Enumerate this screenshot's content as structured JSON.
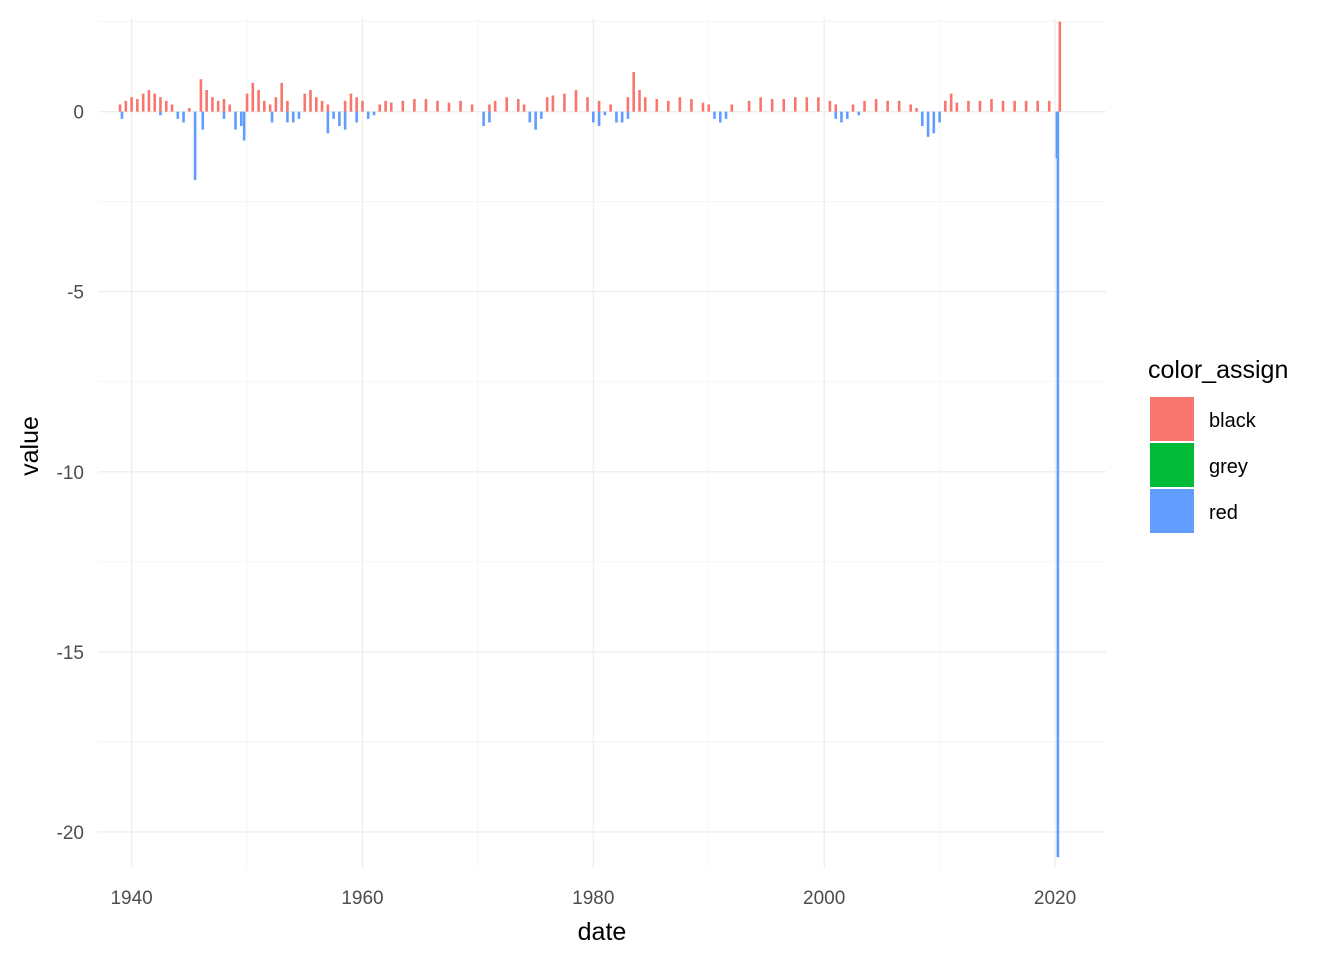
{
  "chart_data": {
    "type": "bar",
    "xlabel": "date",
    "ylabel": "value",
    "xlim": [
      "1937-02-01",
      "2024-06-01"
    ],
    "ylim": [
      -21.0,
      2.6
    ],
    "x_ticks": [
      "1940",
      "1960",
      "1980",
      "2000",
      "2020"
    ],
    "x_tick_dates": [
      "1940-01-01",
      "1960-01-01",
      "1980-01-01",
      "2000-01-01",
      "2020-01-01"
    ],
    "y_ticks": [
      0,
      -5,
      -10,
      -15,
      -20
    ],
    "y_tick_labels": [
      "0",
      "-5",
      "-10",
      "-15",
      "-20"
    ],
    "grid": true,
    "legend": {
      "title": "color_assign",
      "position": "right",
      "entries": [
        {
          "label": "black",
          "color": "#F8766D"
        },
        {
          "label": "grey",
          "color": "#00BA38"
        },
        {
          "label": "red",
          "color": "#619CFF"
        }
      ]
    },
    "series": [
      {
        "name": "black",
        "color": "#F8766D",
        "points": [
          [
            "1939-01-01",
            0.2
          ],
          [
            "1939-07-01",
            0.3
          ],
          [
            "1940-01-01",
            0.4
          ],
          [
            "1940-07-01",
            0.35
          ],
          [
            "1941-01-01",
            0.5
          ],
          [
            "1941-07-01",
            0.6
          ],
          [
            "1942-01-01",
            0.5
          ],
          [
            "1942-07-01",
            0.4
          ],
          [
            "1943-01-01",
            0.3
          ],
          [
            "1943-07-01",
            0.2
          ],
          [
            "1945-01-01",
            0.1
          ],
          [
            "1946-01-01",
            0.9
          ],
          [
            "1946-07-01",
            0.6
          ],
          [
            "1947-01-01",
            0.4
          ],
          [
            "1947-07-01",
            0.3
          ],
          [
            "1948-01-01",
            0.35
          ],
          [
            "1948-07-01",
            0.2
          ],
          [
            "1950-01-01",
            0.5
          ],
          [
            "1950-07-01",
            0.8
          ],
          [
            "1951-01-01",
            0.6
          ],
          [
            "1951-07-01",
            0.3
          ],
          [
            "1952-01-01",
            0.2
          ],
          [
            "1952-07-01",
            0.4
          ],
          [
            "1953-01-01",
            0.8
          ],
          [
            "1953-07-01",
            0.3
          ],
          [
            "1955-01-01",
            0.5
          ],
          [
            "1955-07-01",
            0.6
          ],
          [
            "1956-01-01",
            0.4
          ],
          [
            "1956-07-01",
            0.3
          ],
          [
            "1957-01-01",
            0.2
          ],
          [
            "1958-07-01",
            0.3
          ],
          [
            "1959-01-01",
            0.5
          ],
          [
            "1959-07-01",
            0.4
          ],
          [
            "1960-01-01",
            0.3
          ],
          [
            "1961-07-01",
            0.2
          ],
          [
            "1962-01-01",
            0.3
          ],
          [
            "1962-07-01",
            0.25
          ],
          [
            "1963-07-01",
            0.3
          ],
          [
            "1964-07-01",
            0.35
          ],
          [
            "1965-07-01",
            0.35
          ],
          [
            "1966-07-01",
            0.3
          ],
          [
            "1967-07-01",
            0.25
          ],
          [
            "1968-07-01",
            0.3
          ],
          [
            "1969-07-01",
            0.2
          ],
          [
            "1971-01-01",
            0.2
          ],
          [
            "1971-07-01",
            0.3
          ],
          [
            "1972-07-01",
            0.4
          ],
          [
            "1973-07-01",
            0.35
          ],
          [
            "1974-01-01",
            0.2
          ],
          [
            "1976-01-01",
            0.4
          ],
          [
            "1976-07-01",
            0.45
          ],
          [
            "1977-07-01",
            0.5
          ],
          [
            "1978-07-01",
            0.6
          ],
          [
            "1979-07-01",
            0.4
          ],
          [
            "1980-07-01",
            0.3
          ],
          [
            "1981-07-01",
            0.2
          ],
          [
            "1983-01-01",
            0.4
          ],
          [
            "1983-07-01",
            1.1
          ],
          [
            "1984-01-01",
            0.6
          ],
          [
            "1984-07-01",
            0.4
          ],
          [
            "1985-07-01",
            0.35
          ],
          [
            "1986-07-01",
            0.3
          ],
          [
            "1987-07-01",
            0.4
          ],
          [
            "1988-07-01",
            0.35
          ],
          [
            "1989-07-01",
            0.25
          ],
          [
            "1990-01-01",
            0.2
          ],
          [
            "1992-01-01",
            0.2
          ],
          [
            "1993-07-01",
            0.3
          ],
          [
            "1994-07-01",
            0.4
          ],
          [
            "1995-07-01",
            0.35
          ],
          [
            "1996-07-01",
            0.35
          ],
          [
            "1997-07-01",
            0.4
          ],
          [
            "1998-07-01",
            0.4
          ],
          [
            "1999-07-01",
            0.4
          ],
          [
            "2000-07-01",
            0.3
          ],
          [
            "2001-01-01",
            0.2
          ],
          [
            "2002-07-01",
            0.2
          ],
          [
            "2003-07-01",
            0.3
          ],
          [
            "2004-07-01",
            0.35
          ],
          [
            "2005-07-01",
            0.3
          ],
          [
            "2006-07-01",
            0.3
          ],
          [
            "2007-07-01",
            0.2
          ],
          [
            "2008-01-01",
            0.1
          ],
          [
            "2010-07-01",
            0.3
          ],
          [
            "2011-01-01",
            0.5
          ],
          [
            "2011-07-01",
            0.25
          ],
          [
            "2012-07-01",
            0.3
          ],
          [
            "2013-07-01",
            0.3
          ],
          [
            "2014-07-01",
            0.35
          ],
          [
            "2015-07-01",
            0.3
          ],
          [
            "2016-07-01",
            0.3
          ],
          [
            "2017-07-01",
            0.3
          ],
          [
            "2018-07-01",
            0.3
          ],
          [
            "2019-07-01",
            0.3
          ],
          [
            "2020-06-01",
            2.5
          ]
        ]
      },
      {
        "name": "red",
        "color": "#619CFF",
        "points": [
          [
            "1939-03-01",
            -0.2
          ],
          [
            "1942-07-01",
            -0.1
          ],
          [
            "1944-01-01",
            -0.2
          ],
          [
            "1944-07-01",
            -0.3
          ],
          [
            "1945-07-01",
            -1.9
          ],
          [
            "1946-03-01",
            -0.5
          ],
          [
            "1948-01-01",
            -0.2
          ],
          [
            "1949-01-01",
            -0.5
          ],
          [
            "1949-07-01",
            -0.4
          ],
          [
            "1949-10-01",
            -0.8
          ],
          [
            "1952-03-01",
            -0.3
          ],
          [
            "1953-07-01",
            -0.3
          ],
          [
            "1954-01-01",
            -0.3
          ],
          [
            "1954-07-01",
            -0.2
          ],
          [
            "1957-01-01",
            -0.6
          ],
          [
            "1957-07-01",
            -0.2
          ],
          [
            "1958-01-01",
            -0.4
          ],
          [
            "1958-07-01",
            -0.5
          ],
          [
            "1959-07-01",
            -0.3
          ],
          [
            "1960-07-01",
            -0.2
          ],
          [
            "1961-01-01",
            -0.1
          ],
          [
            "1970-07-01",
            -0.4
          ],
          [
            "1971-01-01",
            -0.3
          ],
          [
            "1974-07-01",
            -0.3
          ],
          [
            "1975-01-01",
            -0.5
          ],
          [
            "1975-07-01",
            -0.2
          ],
          [
            "1980-01-01",
            -0.3
          ],
          [
            "1980-07-01",
            -0.4
          ],
          [
            "1981-01-01",
            -0.1
          ],
          [
            "1982-01-01",
            -0.3
          ],
          [
            "1982-07-01",
            -0.3
          ],
          [
            "1983-01-01",
            -0.2
          ],
          [
            "1990-07-01",
            -0.2
          ],
          [
            "1991-01-01",
            -0.3
          ],
          [
            "1991-07-01",
            -0.2
          ],
          [
            "2001-01-01",
            -0.2
          ],
          [
            "2001-07-01",
            -0.3
          ],
          [
            "2002-01-01",
            -0.2
          ],
          [
            "2003-01-01",
            -0.1
          ],
          [
            "2008-07-01",
            -0.4
          ],
          [
            "2009-01-01",
            -0.7
          ],
          [
            "2009-07-01",
            -0.6
          ],
          [
            "2010-01-01",
            -0.3
          ],
          [
            "2020-03-01",
            -1.3
          ],
          [
            "2020-04-01",
            -20.7
          ]
        ]
      }
    ]
  }
}
